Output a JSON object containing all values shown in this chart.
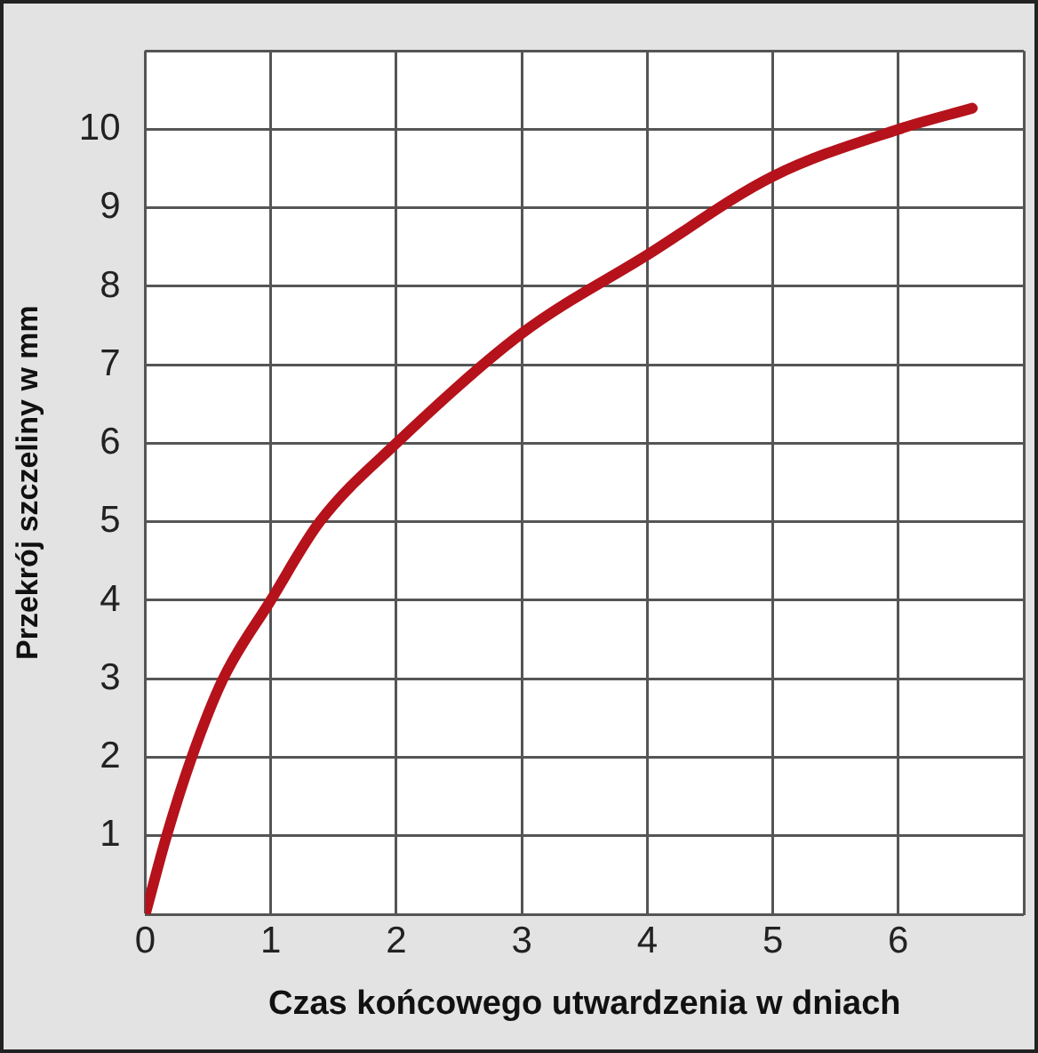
{
  "chart_data": {
    "type": "line",
    "xlabel": "Czas końcowego utwardzenia w dniach",
    "ylabel": "Przekrój szczeliny w mm",
    "x": [
      0,
      0.17,
      0.37,
      0.62,
      1,
      1.39,
      2,
      3,
      4,
      5,
      6,
      6.59
    ],
    "series": [
      {
        "color": "#b5121b",
        "values": [
          0,
          1,
          2,
          3,
          4,
          5,
          6,
          7.4,
          8.4,
          9.4,
          10,
          10.27
        ]
      }
    ],
    "xlim": [
      0,
      7
    ],
    "xticks": [
      0,
      1,
      2,
      3,
      4,
      5,
      6,
      {
        "value": 7,
        "label": null
      }
    ],
    "ylim": [
      0,
      11
    ],
    "yticks": [
      {
        "value": 0,
        "label": null
      },
      1,
      2,
      3,
      4,
      5,
      6,
      7,
      8,
      9,
      10,
      {
        "value": 11,
        "label": null
      }
    ],
    "grid": true,
    "legend": false,
    "marker": "none",
    "line_style": "solid"
  }
}
